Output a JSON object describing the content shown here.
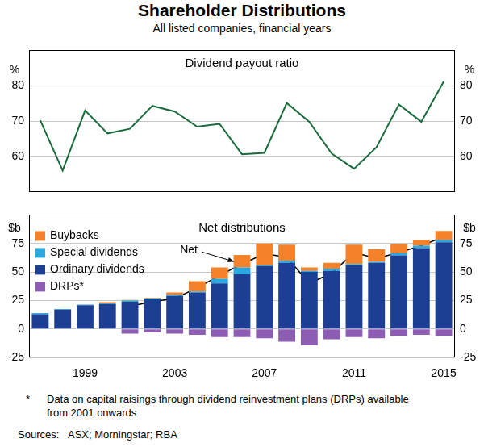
{
  "title": "Shareholder Distributions",
  "subtitle": "All listed companies, financial years",
  "chart_data": [
    {
      "type": "line",
      "title": "Dividend payout ratio",
      "ylabel": "%",
      "categories": [
        null,
        null,
        "1999",
        null,
        null,
        null,
        "2003",
        null,
        null,
        null,
        "2007",
        null,
        null,
        null,
        "2011",
        null,
        null,
        null,
        "2015"
      ],
      "values": [
        70.2,
        56,
        73,
        66.5,
        67.8,
        74.3,
        72.7,
        68.4,
        69.2,
        60.6,
        61,
        75.1,
        69.8,
        60.8,
        56.5,
        62.6,
        74.7,
        69.8,
        81.2
      ],
      "color": "#1a6b3c",
      "ylim": [
        50,
        90
      ],
      "yticks": [
        60,
        70,
        80
      ],
      "grid": true,
      "tick_labels": "y"
    },
    {
      "type": "bar",
      "title": "Net distributions",
      "ylabel": "$b",
      "stacked": true,
      "legend": "upper left",
      "categories": [
        null,
        null,
        "1999",
        null,
        null,
        null,
        "2003",
        null,
        null,
        null,
        "2007",
        null,
        null,
        null,
        "2011",
        null,
        null,
        null,
        "2015"
      ],
      "series": [
        {
          "name": "Buybacks",
          "color": "#f4822b",
          "values": [
            0,
            0,
            0,
            1,
            0.5,
            0.5,
            2,
            9,
            10,
            11,
            19,
            14,
            3,
            5,
            17,
            11,
            8,
            5,
            8
          ]
        },
        {
          "name": "Special dividends",
          "color": "#2aa8df",
          "values": [
            1,
            0.5,
            0.5,
            0.5,
            1,
            1,
            1,
            1,
            4,
            6,
            1,
            2,
            1,
            2,
            1,
            1,
            2,
            2,
            2
          ]
        },
        {
          "name": "Ordinary dividends",
          "color": "#1c3f94",
          "values": [
            13,
            17,
            21,
            22,
            24,
            26,
            29,
            32,
            40,
            48,
            55,
            58,
            50,
            51,
            56,
            58,
            64.5,
            71,
            76
          ]
        },
        {
          "name": "DRPs*",
          "color": "#8c5db3",
          "values": [
            null,
            null,
            null,
            null,
            -4,
            -3,
            -4,
            -5,
            -7,
            -7,
            -8,
            -11,
            -14,
            -9,
            -7,
            -8,
            -6,
            -5,
            -6
          ]
        },
        {
          "name": "Net",
          "type": "line",
          "color": "#000000",
          "values": [
            null,
            null,
            null,
            null,
            20,
            24,
            27,
            36,
            47,
            57,
            66,
            63,
            40,
            49,
            67,
            62,
            67,
            73,
            81
          ]
        }
      ],
      "ylim": [
        -25,
        100
      ],
      "yticks": [
        -25,
        0,
        25,
        50,
        75
      ],
      "grid": true
    }
  ],
  "footnote": {
    "marker": "*",
    "text": "Data on capital raisings through dividend reinvestment plans (DRPs) available from 2001 onwards"
  },
  "sources": {
    "label": "Sources:",
    "text": "ASX; Morningstar; RBA"
  }
}
